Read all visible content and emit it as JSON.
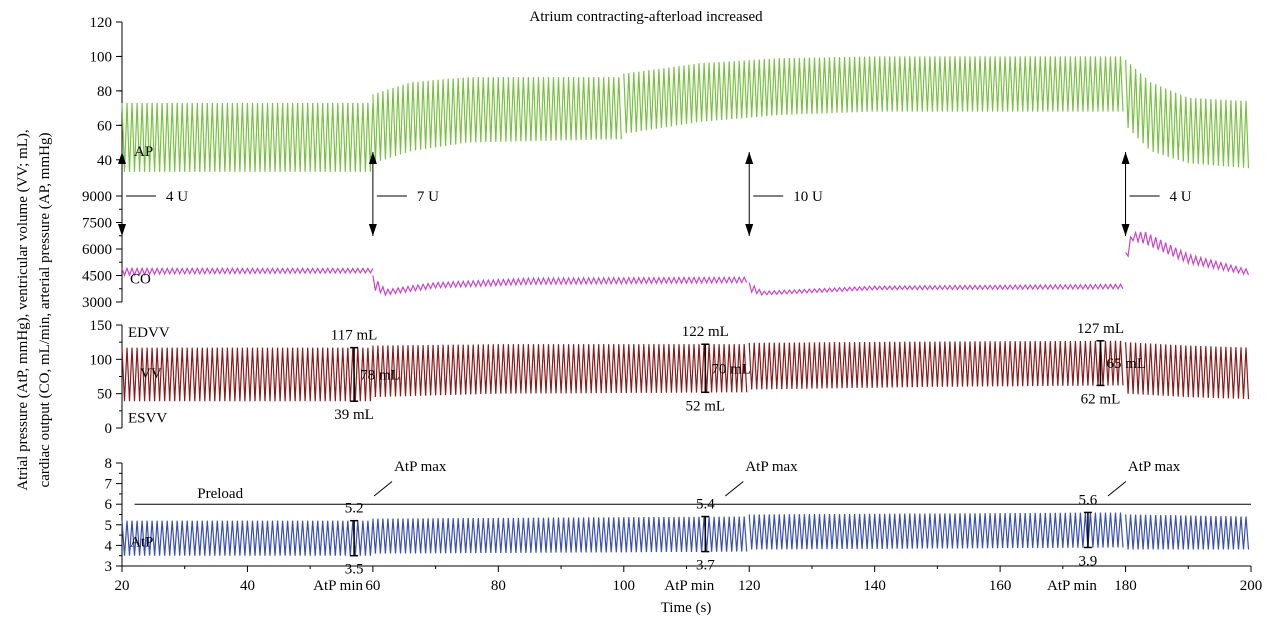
{
  "chart_data": {
    "type": "line",
    "title": "Atrium contracting-afterload increased",
    "xlabel": "Time (s)",
    "ylabel_lines": [
      "Atrial pressure (AtP, mmHg), ventricular volume (VV; mL),",
      "cardiac output (CO, mL/min, arterial pressure (AP, mmHg)"
    ],
    "xlim": [
      20,
      200
    ],
    "x_ticks": [
      "20",
      "40",
      "60",
      "80",
      "100",
      "120",
      "140",
      "160",
      "180",
      "200"
    ],
    "panels": [
      {
        "id": "ap",
        "ylim": [
          30,
          120
        ],
        "y_ticks": [
          "40",
          "60",
          "80",
          "100",
          "120"
        ],
        "series": [
          {
            "name": "AP",
            "color": "#7ac143",
            "segments": [
              {
                "x": [
                  20,
                  60
                ],
                "min": [
                  33,
                  33
                ],
                "max": [
                  73,
                  73
                ]
              },
              {
                "x": [
                  60,
                  66,
                  75,
                  100
                ],
                "min": [
                  38,
                  45,
                  50,
                  52
                ],
                "max": [
                  78,
                  85,
                  88,
                  88
                ]
              },
              {
                "x": [
                  100,
                  112,
                  125,
                  140,
                  180
                ],
                "min": [
                  55,
                  62,
                  66,
                  68,
                  68
                ],
                "max": [
                  90,
                  96,
                  99,
                  100,
                  100
                ]
              },
              {
                "x": [
                  180,
                  184,
                  190,
                  200
                ],
                "min": [
                  60,
                  45,
                  38,
                  35
                ],
                "max": [
                  98,
                  85,
                  76,
                  74
                ]
              }
            ]
          }
        ]
      },
      {
        "id": "co",
        "ylim": [
          3000,
          9000
        ],
        "y_ticks": [
          "3000",
          "4500",
          "6000",
          "7500",
          "9000"
        ],
        "series": [
          {
            "name": "CO",
            "color": "#c845c8",
            "segments": [
              {
                "x": [
                  20,
                  27,
                  60
                ],
                "min": [
                  4500,
                  4600,
                  4650
                ],
                "max": [
                  4900,
                  4900,
                  4900
                ]
              },
              {
                "x": [
                  60,
                  62,
                  70,
                  85,
                  120
                ],
                "min": [
                  3700,
                  3400,
                  3800,
                  4000,
                  4100
                ],
                "max": [
                  4500,
                  3700,
                  4100,
                  4350,
                  4400
                ]
              },
              {
                "x": [
                  120,
                  122,
                  140,
                  180
                ],
                "min": [
                  3600,
                  3400,
                  3700,
                  3750
                ],
                "max": [
                  4100,
                  3600,
                  3900,
                  4000
                ]
              },
              {
                "x": [
                  180,
                  181,
                  183,
                  190,
                  200
                ],
                "min": [
                  5000,
                  6500,
                  6300,
                  5200,
                  4500
                ],
                "max": [
                  5800,
                  6900,
                  7000,
                  5700,
                  4800
                ]
              }
            ]
          }
        ]
      },
      {
        "id": "vv",
        "ylim": [
          0,
          150
        ],
        "y_ticks": [
          "0",
          "50",
          "100",
          "150"
        ],
        "series": [
          {
            "name": "VV",
            "color": "#8b1a1a",
            "segments": [
              {
                "x": [
                  20,
                  60
                ],
                "min": [
                  39,
                  39
                ],
                "max": [
                  117,
                  117
                ]
              },
              {
                "x": [
                  60,
                  80,
                  120
                ],
                "min": [
                  45,
                  50,
                  52
                ],
                "max": [
                  120,
                  122,
                  122
                ]
              },
              {
                "x": [
                  120,
                  150,
                  180
                ],
                "min": [
                  56,
                  60,
                  62
                ],
                "max": [
                  124,
                  126,
                  127
                ]
              },
              {
                "x": [
                  180,
                  190,
                  200
                ],
                "min": [
                  50,
                  45,
                  42
                ],
                "max": [
                  125,
                  120,
                  117
                ]
              }
            ]
          }
        ]
      },
      {
        "id": "atp",
        "ylim": [
          3,
          8
        ],
        "y_ticks": [
          "3",
          "4",
          "5",
          "6",
          "7",
          "8"
        ],
        "series": [
          {
            "name": "AtP",
            "color": "#3a4fb5",
            "segments": [
              {
                "x": [
                  20,
                  60
                ],
                "min": [
                  3.5,
                  3.5
                ],
                "max": [
                  5.2,
                  5.2
                ]
              },
              {
                "x": [
                  60,
                  120
                ],
                "min": [
                  3.6,
                  3.7
                ],
                "max": [
                  5.3,
                  5.4
                ]
              },
              {
                "x": [
                  120,
                  180
                ],
                "min": [
                  3.8,
                  3.9
                ],
                "max": [
                  5.5,
                  5.6
                ]
              },
              {
                "x": [
                  180,
                  200
                ],
                "min": [
                  3.8,
                  3.8
                ],
                "max": [
                  5.5,
                  5.4
                ]
              }
            ]
          }
        ],
        "preload": 6
      }
    ],
    "annotations": {
      "series_labels": {
        "ap": "AP",
        "co": "CO",
        "vv": "VV",
        "atp": "AtP",
        "edvv": "EDVV",
        "esvv": "ESVV",
        "preload": "Preload"
      },
      "doses": [
        {
          "x": 20,
          "label": "4 U"
        },
        {
          "x": 60,
          "label": "7 U"
        },
        {
          "x": 120,
          "label": "10 U"
        },
        {
          "x": 180,
          "label": "4 U"
        }
      ],
      "vv_marks": [
        {
          "x": 57,
          "top": "117 mL",
          "diff": "78 mL",
          "bottom": "39 mL",
          "top_val": 117,
          "bottom_val": 39
        },
        {
          "x": 113,
          "top": "122 mL",
          "diff": "70 mL",
          "bottom": "52 mL",
          "top_val": 122,
          "bottom_val": 52
        },
        {
          "x": 176,
          "top": "127 mL",
          "diff": "65 mL",
          "bottom": "62 mL",
          "top_val": 127,
          "bottom_val": 62
        }
      ],
      "atp_marks": [
        {
          "x": 57,
          "max_val": 5.2,
          "min_val": 3.5,
          "max": "5.2",
          "min": "3.5",
          "max_label": "AtP max",
          "min_label": "AtP min"
        },
        {
          "x": 113,
          "max_val": 5.4,
          "min_val": 3.7,
          "max": "5.4",
          "min": "3.7",
          "max_label": "AtP max",
          "min_label": "AtP min"
        },
        {
          "x": 174,
          "max_val": 5.6,
          "min_val": 3.9,
          "max": "5.6",
          "min": "3.9",
          "max_label": "AtP max",
          "min_label": "AtP min"
        }
      ]
    }
  }
}
